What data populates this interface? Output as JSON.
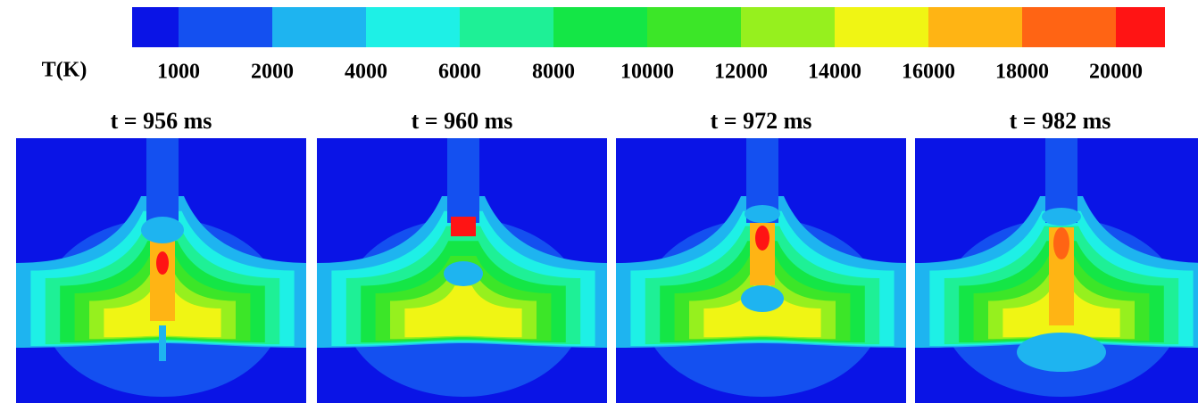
{
  "colorbar": {
    "label": "T(K)",
    "colors": [
      "#0a14e6",
      "#1450f0",
      "#1eb4f0",
      "#1ef0e6",
      "#1ef096",
      "#14e646",
      "#3ce628",
      "#96f01e",
      "#f0f514",
      "#ffb414",
      "#ff6414",
      "#ff1414"
    ],
    "levels": [
      1000,
      2000,
      4000,
      6000,
      8000,
      10000,
      12000,
      14000,
      16000,
      18000,
      20000
    ]
  },
  "panels": [
    {
      "title": "t = 956 ms"
    },
    {
      "title": "t = 960 ms"
    },
    {
      "title": "t = 972 ms"
    },
    {
      "title": "t = 982 ms"
    }
  ]
}
